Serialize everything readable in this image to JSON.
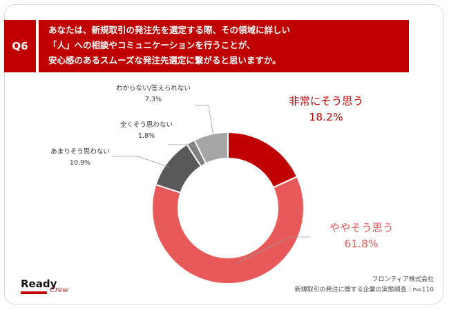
{
  "header": {
    "badge": "Q6",
    "question_lines": [
      "あなたは、新規取引の発注先を選定する際、その領域に詳しい",
      "「人」への相談やコミュニケーションを行うことが、",
      "安心感のあるスムーズな発注先選定に繋がると思いますか。"
    ]
  },
  "chart_data": {
    "type": "pie",
    "donut": true,
    "n": "n=110",
    "slices": [
      {
        "label": "非常にそう思う",
        "value": 18.2,
        "display": "18.2%",
        "color": "#c00000"
      },
      {
        "label": "ややそう思う",
        "value": 61.8,
        "display": "61.8%",
        "color": "#e85a5a"
      },
      {
        "label": "あまりそう思わない",
        "value": 10.9,
        "display": "10.9%",
        "color": "#595959"
      },
      {
        "label": "全くそう思わない",
        "value": 1.8,
        "display": "1.8%",
        "color": "#7f7f7f"
      },
      {
        "label": "わからない/答えられない",
        "value": 7.3,
        "display": "7.3%",
        "color": "#a6a6a6"
      }
    ]
  },
  "footer": {
    "logo_main": "Ready",
    "logo_sub": "Crew",
    "company": "フロンティア株式会社",
    "survey": "新規取引の発注に関する企業の実態調査｜n=110"
  }
}
